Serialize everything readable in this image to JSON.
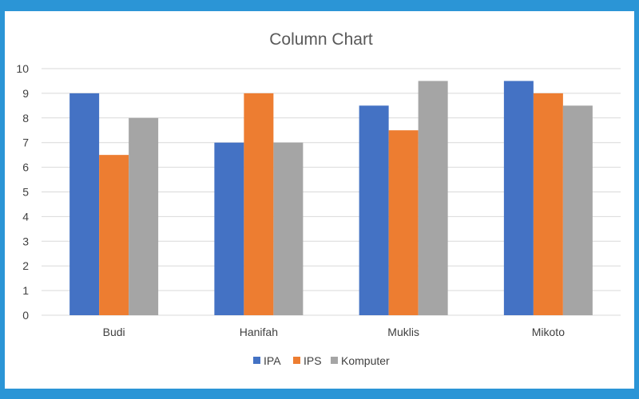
{
  "chart_data": {
    "type": "bar",
    "title": "Column Chart",
    "xlabel": "",
    "ylabel": "",
    "categories": [
      "Budi",
      "Hanifah",
      "Muklis",
      "Mikoto"
    ],
    "series": [
      {
        "name": "IPA",
        "values": [
          9,
          7,
          8.5,
          9.5
        ],
        "color": "#4472c4"
      },
      {
        "name": "IPS",
        "values": [
          6.5,
          9,
          7.5,
          9
        ],
        "color": "#ed7d31"
      },
      {
        "name": "Komputer",
        "values": [
          8,
          7,
          9.5,
          8.5
        ],
        "color": "#a5a5a5"
      }
    ],
    "ylim": [
      0,
      10
    ],
    "yticks": [
      "0",
      "1",
      "2",
      "3",
      "4",
      "5",
      "6",
      "7",
      "8",
      "9",
      "10"
    ],
    "grid": true,
    "legend_position": "bottom"
  },
  "colors": {
    "frame": "#2b95d6",
    "gridline": "#d9d9d9",
    "text": "#404040"
  }
}
